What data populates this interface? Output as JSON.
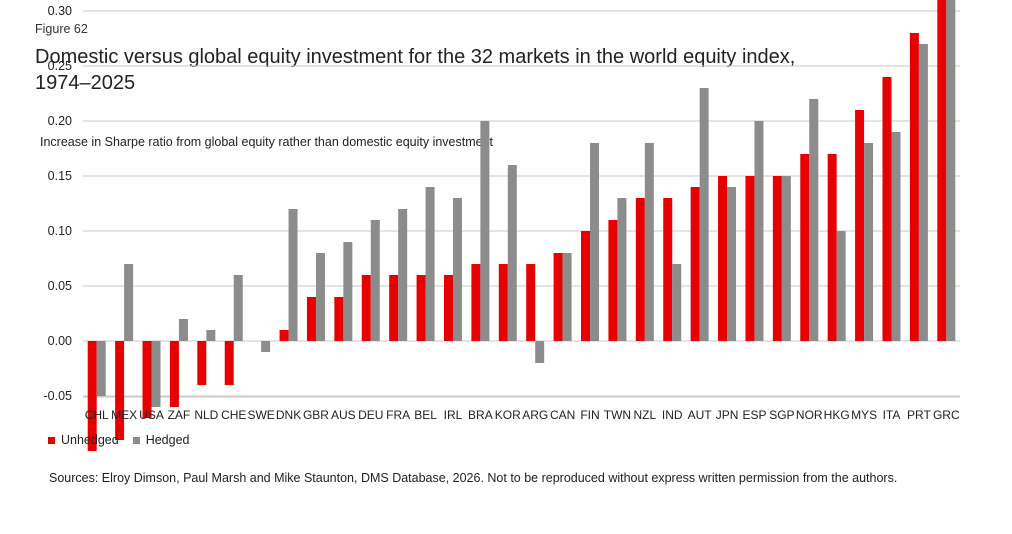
{
  "figure_label": "Figure 62",
  "title_line1": "Domestic versus global equity investment for the 32 markets in the world equity index,",
  "title_line2": "1974–2025",
  "source": "Sources: Elroy Dimson, Paul Marsh and Mike Staunton, DMS Database, 2026. Not to be reproduced without express written permission from the authors.",
  "chart_data": {
    "type": "bar",
    "ylabel": "Increase in Sharpe ratio from global equity rather than domestic equity investment",
    "xlabel": "",
    "ylim": [
      -0.1,
      0.33
    ],
    "yticks": [
      0.3,
      0.25,
      0.2,
      0.15,
      0.1,
      0.05,
      0.0,
      -0.05
    ],
    "ytick_labels": [
      "0.30",
      "0.25",
      "0.20",
      "0.15",
      "0.10",
      "0.05",
      "0.00",
      "-0.05"
    ],
    "grid": true,
    "legend_position": "bottom-left",
    "categories": [
      "CHL",
      "MEX",
      "USA",
      "ZAF",
      "NLD",
      "CHE",
      "SWE",
      "DNK",
      "GBR",
      "AUS",
      "DEU",
      "FRA",
      "BEL",
      "IRL",
      "BRA",
      "KOR",
      "ARG",
      "CAN",
      "FIN",
      "TWN",
      "NZL",
      "IND",
      "AUT",
      "JPN",
      "ESP",
      "SGP",
      "NOR",
      "HKG",
      "MYS",
      "ITA",
      "PRT",
      "GRC"
    ],
    "series": [
      {
        "name": "Unhedged",
        "color": "#e60000",
        "values": [
          -0.1,
          -0.09,
          -0.07,
          -0.06,
          -0.04,
          -0.04,
          0.0,
          0.01,
          0.04,
          0.04,
          0.06,
          0.06,
          0.06,
          0.06,
          0.07,
          0.07,
          0.07,
          0.08,
          0.1,
          0.11,
          0.13,
          0.13,
          0.14,
          0.15,
          0.15,
          0.15,
          0.17,
          0.17,
          0.21,
          0.24,
          0.28,
          0.33
        ]
      },
      {
        "name": "Hedged",
        "color": "#8c8c8c",
        "values": [
          -0.05,
          0.07,
          -0.06,
          0.02,
          0.01,
          0.06,
          -0.01,
          0.12,
          0.08,
          0.09,
          0.11,
          0.12,
          0.14,
          0.13,
          0.2,
          0.16,
          -0.02,
          0.08,
          0.18,
          0.13,
          0.18,
          0.07,
          0.23,
          0.14,
          0.2,
          0.15,
          0.22,
          0.1,
          0.18,
          0.19,
          0.27,
          0.31
        ]
      }
    ]
  }
}
